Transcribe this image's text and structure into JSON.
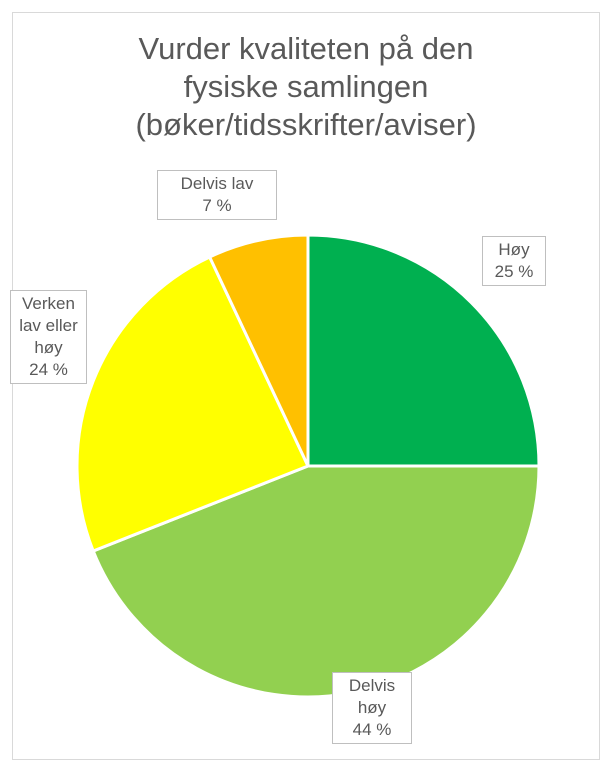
{
  "chart_data": {
    "type": "pie",
    "title": [
      "Vurder kvaliteten på den",
      "fysiske samlingen",
      "(bøker/tidsskrifter/aviser)"
    ],
    "categories": [
      "Høy",
      "Delvis høy",
      "Verken lav eller høy",
      "Delvis lav"
    ],
    "values": [
      25,
      44,
      24,
      7
    ],
    "value_labels": [
      "25 %",
      "44 %",
      "24 %",
      "7 %"
    ],
    "colors": [
      "#00b050",
      "#92d050",
      "#ffff00",
      "#ffc000"
    ]
  }
}
